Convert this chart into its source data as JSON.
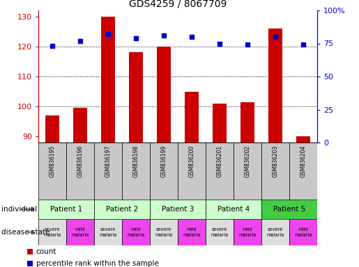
{
  "title": "GDS4259 / 8067709",
  "samples": [
    "GSM836195",
    "GSM836196",
    "GSM836197",
    "GSM836198",
    "GSM836199",
    "GSM836200",
    "GSM836201",
    "GSM836202",
    "GSM836203",
    "GSM836204"
  ],
  "counts": [
    97,
    99.5,
    130,
    118,
    120,
    105,
    101,
    101.5,
    126,
    90
  ],
  "percentile_ranks": [
    73,
    77,
    82,
    79,
    81,
    80,
    75,
    74,
    80,
    74
  ],
  "ylim_left": [
    88,
    132
  ],
  "ylim_right": [
    0,
    100
  ],
  "yticks_left": [
    90,
    100,
    110,
    120,
    130
  ],
  "yticks_right": [
    0,
    25,
    50,
    75,
    100
  ],
  "yticklabels_right": [
    "0",
    "25",
    "50",
    "75",
    "100%"
  ],
  "patients": [
    {
      "label": "Patient 1",
      "start": 0,
      "end": 2,
      "color": "#ccffcc"
    },
    {
      "label": "Patient 2",
      "start": 2,
      "end": 4,
      "color": "#ccffcc"
    },
    {
      "label": "Patient 3",
      "start": 4,
      "end": 6,
      "color": "#ccffcc"
    },
    {
      "label": "Patient 4",
      "start": 6,
      "end": 8,
      "color": "#ccffcc"
    },
    {
      "label": "Patient 5",
      "start": 8,
      "end": 10,
      "color": "#44cc44"
    }
  ],
  "disease_states": [
    {
      "label": "severe\nmalaria",
      "color": "#dddddd"
    },
    {
      "label": "mild\nmalaria",
      "color": "#ee44ee"
    },
    {
      "label": "severe\nmalaria",
      "color": "#dddddd"
    },
    {
      "label": "mild\nmalaria",
      "color": "#ee44ee"
    },
    {
      "label": "severe\nmalaria",
      "color": "#dddddd"
    },
    {
      "label": "mild\nmalaria",
      "color": "#ee44ee"
    },
    {
      "label": "severe\nmalaria",
      "color": "#dddddd"
    },
    {
      "label": "mild\nmalaria",
      "color": "#ee44ee"
    },
    {
      "label": "severe\nmalaria",
      "color": "#dddddd"
    },
    {
      "label": "mild\nmalaria",
      "color": "#ee44ee"
    }
  ],
  "bar_color": "#cc0000",
  "dot_color": "#0000cc",
  "bar_bottom": 88,
  "left_axis_color": "#cc0000",
  "right_axis_color": "#0000cc",
  "sample_bg_color": "#c8c8c8",
  "legend_items": [
    "count",
    "percentile rank within the sample"
  ],
  "grid_yticks": [
    100,
    110,
    120
  ],
  "fig_width": 5.15,
  "fig_height": 3.84,
  "dpi": 100
}
